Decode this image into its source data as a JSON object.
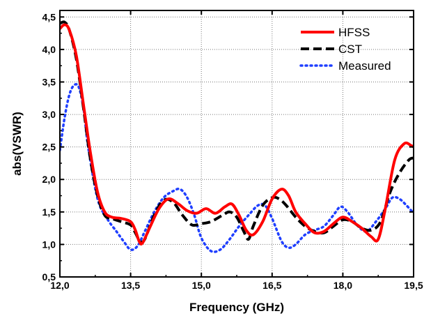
{
  "chart_data": {
    "type": "line",
    "xlabel": "Frequency (GHz)",
    "ylabel": "abs(VSWR)",
    "xlim": [
      12.0,
      19.5
    ],
    "ylim": [
      0.5,
      4.6
    ],
    "x_ticks": [
      12.0,
      13.5,
      15.0,
      16.5,
      18.0,
      19.5
    ],
    "x_tick_labels": [
      "12,0",
      "13,5",
      "15,0",
      "16,5",
      "18,0",
      "19,5"
    ],
    "y_ticks": [
      0.5,
      1.0,
      1.5,
      2.0,
      2.5,
      3.0,
      3.5,
      4.0,
      4.5
    ],
    "y_tick_labels": [
      "0,5",
      "1,0",
      "1,5",
      "2,0",
      "2,5",
      "3,0",
      "3,5",
      "4,0",
      "4,5"
    ],
    "grid": true,
    "legend_position": "top-right",
    "series": [
      {
        "name": "HFSS",
        "color": "#ff0000",
        "style": "solid",
        "x": [
          12.0,
          12.1,
          12.2,
          12.35,
          12.5,
          12.65,
          12.8,
          12.95,
          13.1,
          13.3,
          13.5,
          13.6,
          13.68,
          13.75,
          13.9,
          14.1,
          14.3,
          14.5,
          14.7,
          14.9,
          15.1,
          15.3,
          15.5,
          15.65,
          15.8,
          15.95,
          16.1,
          16.3,
          16.5,
          16.7,
          16.85,
          17.0,
          17.2,
          17.4,
          17.6,
          17.8,
          18.0,
          18.2,
          18.4,
          18.6,
          18.75,
          18.9,
          19.1,
          19.3,
          19.45,
          19.5
        ],
        "y": [
          4.32,
          4.38,
          4.3,
          3.9,
          3.15,
          2.4,
          1.8,
          1.5,
          1.42,
          1.4,
          1.35,
          1.22,
          1.05,
          1.02,
          1.25,
          1.55,
          1.7,
          1.63,
          1.52,
          1.48,
          1.55,
          1.48,
          1.58,
          1.62,
          1.45,
          1.22,
          1.15,
          1.35,
          1.7,
          1.85,
          1.75,
          1.5,
          1.32,
          1.18,
          1.2,
          1.32,
          1.42,
          1.35,
          1.25,
          1.12,
          1.08,
          1.55,
          2.3,
          2.55,
          2.52,
          2.5
        ]
      },
      {
        "name": "CST",
        "color": "#000000",
        "style": "dashed",
        "x": [
          12.0,
          12.1,
          12.2,
          12.35,
          12.5,
          12.65,
          12.8,
          12.95,
          13.1,
          13.3,
          13.5,
          13.6,
          13.7,
          13.8,
          14.0,
          14.2,
          14.4,
          14.6,
          14.8,
          15.0,
          15.2,
          15.45,
          15.6,
          15.75,
          15.9,
          16.0,
          16.1,
          16.3,
          16.5,
          16.65,
          16.8,
          17.0,
          17.2,
          17.4,
          17.6,
          17.8,
          18.0,
          18.2,
          18.4,
          18.6,
          18.8,
          19.0,
          19.2,
          19.4,
          19.5
        ],
        "y": [
          4.4,
          4.42,
          4.3,
          3.85,
          3.1,
          2.3,
          1.75,
          1.45,
          1.4,
          1.35,
          1.3,
          1.18,
          1.05,
          1.08,
          1.45,
          1.68,
          1.65,
          1.45,
          1.3,
          1.32,
          1.35,
          1.45,
          1.5,
          1.42,
          1.2,
          1.08,
          1.28,
          1.6,
          1.72,
          1.7,
          1.6,
          1.42,
          1.28,
          1.2,
          1.18,
          1.28,
          1.38,
          1.35,
          1.25,
          1.22,
          1.35,
          1.8,
          2.1,
          2.3,
          2.33
        ]
      },
      {
        "name": "Measured",
        "color": "#1f3fff",
        "style": "dotted",
        "x": [
          12.0,
          12.1,
          12.2,
          12.3,
          12.4,
          12.5,
          12.6,
          12.8,
          13.0,
          13.2,
          13.35,
          13.5,
          13.65,
          13.8,
          14.0,
          14.2,
          14.4,
          14.55,
          14.7,
          14.85,
          15.0,
          15.2,
          15.4,
          15.6,
          15.8,
          16.0,
          16.2,
          16.35,
          16.5,
          16.7,
          16.85,
          17.0,
          17.2,
          17.4,
          17.6,
          17.8,
          17.95,
          18.1,
          18.3,
          18.5,
          18.7,
          18.9,
          19.05,
          19.2,
          19.35,
          19.5
        ],
        "y": [
          2.45,
          2.95,
          3.3,
          3.45,
          3.42,
          3.1,
          2.5,
          1.7,
          1.4,
          1.2,
          1.05,
          0.92,
          0.98,
          1.2,
          1.5,
          1.72,
          1.82,
          1.85,
          1.72,
          1.45,
          1.1,
          0.9,
          0.92,
          1.08,
          1.28,
          1.45,
          1.6,
          1.6,
          1.4,
          1.05,
          0.95,
          1.0,
          1.15,
          1.22,
          1.28,
          1.45,
          1.58,
          1.5,
          1.3,
          1.2,
          1.35,
          1.55,
          1.72,
          1.7,
          1.6,
          1.48
        ]
      }
    ]
  }
}
